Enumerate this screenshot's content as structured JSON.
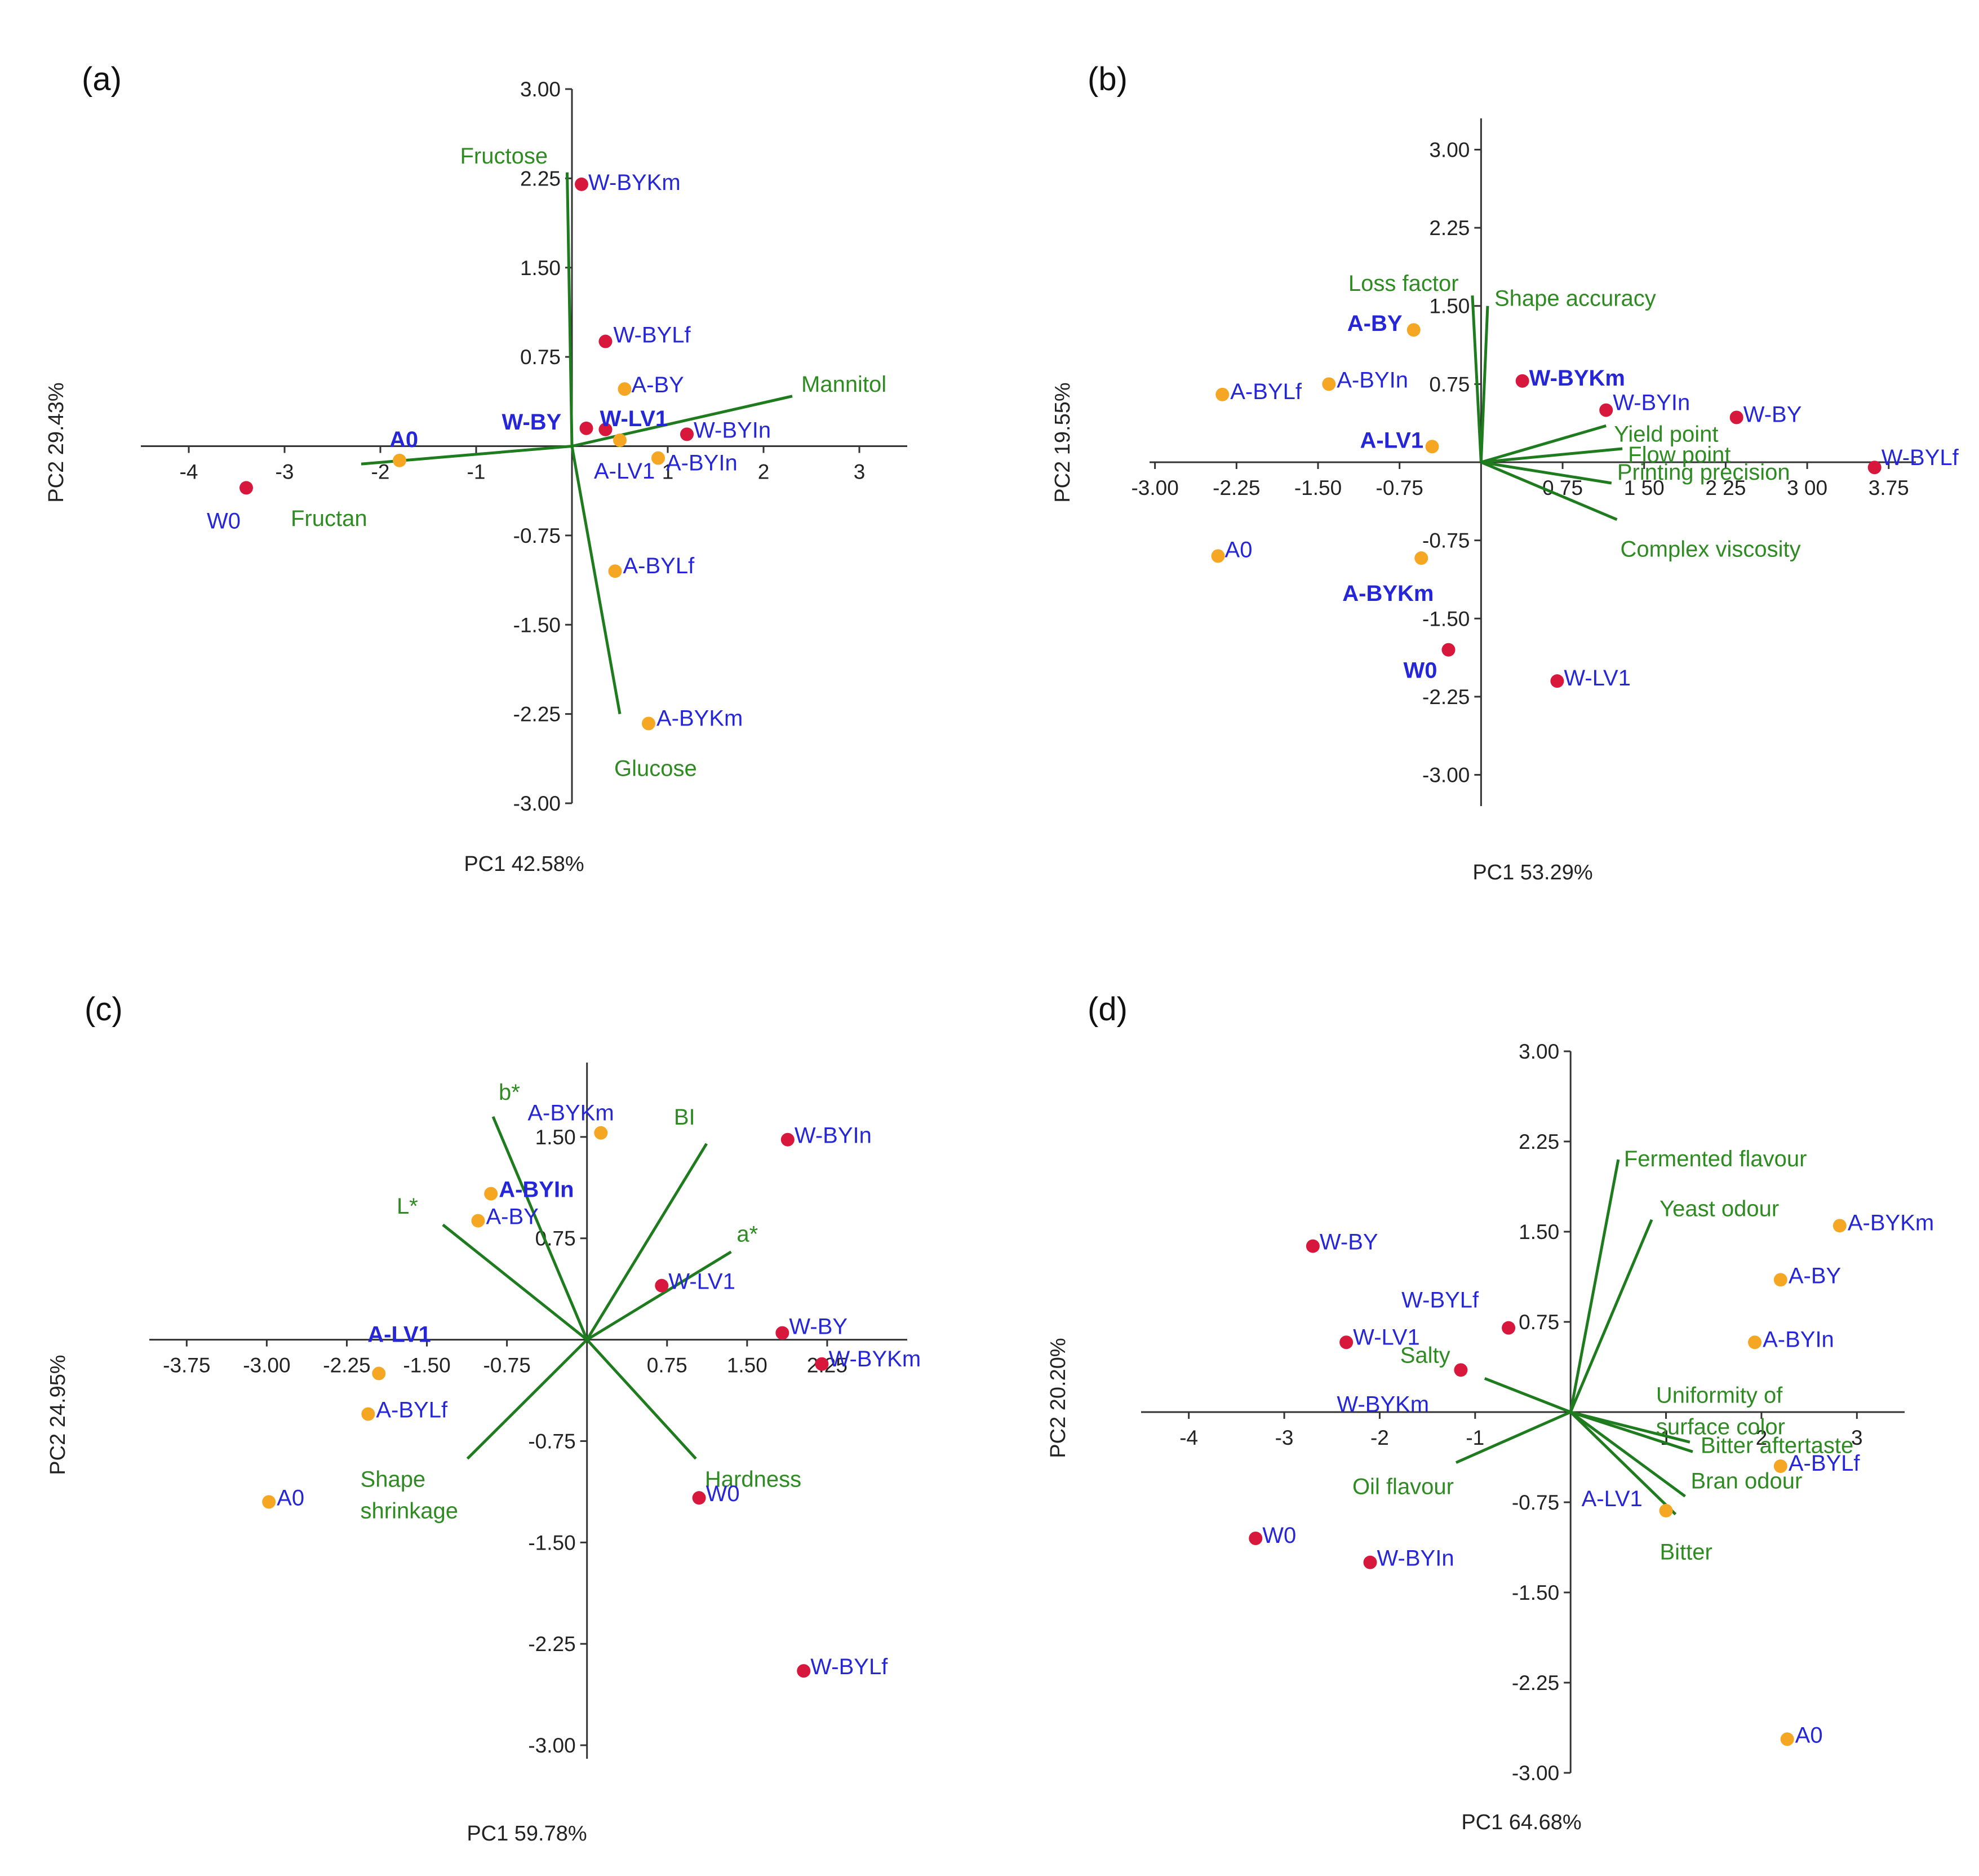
{
  "colors": {
    "axis": "#333333",
    "vector": "#1e7b1e",
    "vector_label": "#2e8b22",
    "sample_label": "#2626d9",
    "W_point": "#d7183c",
    "A_point": "#f5a623"
  },
  "chart_data": [
    {
      "type": "scatter",
      "panel": "(a)",
      "xlabel": "PC1 42.58%",
      "ylabel": "PC2 29.43%",
      "xlim": [
        -4.5,
        3.5
      ],
      "ylim": [
        -3.0,
        3.0
      ],
      "xticks": [
        "-4",
        "-3",
        "-2",
        "-1",
        "1",
        "2",
        "3"
      ],
      "yticks": [
        "3.00",
        "2.25",
        "1.50",
        "0.75",
        "-0.75",
        "-1.50",
        "-2.25",
        "-3.00"
      ],
      "grid": false,
      "points": [
        {
          "label": "W-BYKm",
          "group": "W",
          "x": 0.1,
          "y": 2.2
        },
        {
          "label": "W-BYLf",
          "group": "W",
          "x": 0.35,
          "y": 0.88
        },
        {
          "label": "W-BY",
          "group": "W",
          "x": 0.15,
          "y": 0.15
        },
        {
          "label": "W-LV1",
          "group": "W",
          "x": 0.35,
          "y": 0.14
        },
        {
          "label": "W-BYIn",
          "group": "W",
          "x": 1.2,
          "y": 0.1
        },
        {
          "label": "W0",
          "group": "W",
          "x": -3.4,
          "y": -0.35
        },
        {
          "label": "A-BY",
          "group": "A",
          "x": 0.55,
          "y": 0.48
        },
        {
          "label": "A-LV1",
          "group": "A",
          "x": 0.5,
          "y": 0.05
        },
        {
          "label": "A-BYIn",
          "group": "A",
          "x": 0.9,
          "y": -0.1
        },
        {
          "label": "A0",
          "group": "A",
          "x": -1.8,
          "y": -0.12
        },
        {
          "label": "A-BYLf",
          "group": "A",
          "x": 0.45,
          "y": -1.05
        },
        {
          "label": "A-BYKm",
          "group": "A",
          "x": 0.8,
          "y": -2.33
        }
      ],
      "vectors": [
        {
          "label": "Fructose",
          "x": -0.05,
          "y": 2.3
        },
        {
          "label": "Mannitol",
          "x": 2.3,
          "y": 0.42
        },
        {
          "label": "Fructan",
          "x": -2.2,
          "y": -0.15
        },
        {
          "label": "Glucose",
          "x": 0.5,
          "y": -2.25
        }
      ]
    },
    {
      "type": "scatter",
      "panel": "(b)",
      "xlabel": "PC1 53.29%",
      "ylabel": "PC2 19.55%",
      "xlim": [
        -3.05,
        4.0
      ],
      "ylim": [
        -3.3,
        3.3
      ],
      "xticks": [
        "-3.00",
        "-2.25",
        "-1.50",
        "-0.75",
        "0.75",
        "1 50",
        "2 25",
        "3 00",
        "3.75"
      ],
      "yticks": [
        "3.00",
        "2.25",
        "1.50",
        "0.75",
        "-0.75",
        "-1.50",
        "-2.25",
        "-3.00"
      ],
      "grid": false,
      "points": [
        {
          "label": "W-BYKm",
          "group": "W",
          "x": 0.38,
          "y": 0.78
        },
        {
          "label": "W-BYIn",
          "group": "W",
          "x": 1.15,
          "y": 0.5
        },
        {
          "label": "W-BY",
          "group": "W",
          "x": 2.35,
          "y": 0.43
        },
        {
          "label": "W-BYLf",
          "group": "W",
          "x": 3.62,
          "y": -0.05
        },
        {
          "label": "W0",
          "group": "W",
          "x": -0.3,
          "y": -1.8
        },
        {
          "label": "W-LV1",
          "group": "W",
          "x": 0.7,
          "y": -2.1
        },
        {
          "label": "A-BY",
          "group": "A",
          "x": -0.62,
          "y": 1.27
        },
        {
          "label": "A-BYLf",
          "group": "A",
          "x": -2.38,
          "y": 0.65
        },
        {
          "label": "A-BYIn",
          "group": "A",
          "x": -1.4,
          "y": 0.75
        },
        {
          "label": "A-LV1",
          "group": "A",
          "x": -0.45,
          "y": 0.15
        },
        {
          "label": "A0",
          "group": "A",
          "x": -2.42,
          "y": -0.9
        },
        {
          "label": "A-BYKm",
          "group": "A",
          "x": -0.55,
          "y": -0.92
        }
      ],
      "vectors": [
        {
          "label": "Loss factor",
          "x": -0.08,
          "y": 1.6
        },
        {
          "label": "Shape accuracy",
          "x": 0.06,
          "y": 1.5
        },
        {
          "label": "Yield point",
          "x": 1.15,
          "y": 0.35
        },
        {
          "label": "Flow point",
          "x": 1.3,
          "y": 0.13
        },
        {
          "label": "Printing precision",
          "x": 1.2,
          "y": -0.2
        },
        {
          "label": "Complex viscosity",
          "x": 1.25,
          "y": -0.55
        }
      ]
    },
    {
      "type": "scatter",
      "panel": "(c)",
      "xlabel": "PC1 59.78%",
      "ylabel": "PC2 24.95%",
      "xlim": [
        -4.1,
        3.0
      ],
      "ylim": [
        -3.1,
        2.05
      ],
      "xticks": [
        "-3.75",
        "-3.00",
        "-2.25",
        "-1.50",
        "-0.75",
        "0.75",
        "1.50",
        "2.25"
      ],
      "yticks": [
        "1.50",
        "0.75",
        "-0.75",
        "-1.50",
        "-2.25",
        "-3.00"
      ],
      "grid": false,
      "points": [
        {
          "label": "A-BYKm",
          "group": "A",
          "x": 0.13,
          "y": 1.53
        },
        {
          "label": "A-BYIn",
          "group": "A",
          "x": -0.9,
          "y": 1.08
        },
        {
          "label": "A-BY",
          "group": "A",
          "x": -1.02,
          "y": 0.88
        },
        {
          "label": "A-LV1",
          "group": "A",
          "x": -1.95,
          "y": -0.25
        },
        {
          "label": "A-BYLf",
          "group": "A",
          "x": -2.05,
          "y": -0.55
        },
        {
          "label": "A0",
          "group": "A",
          "x": -2.98,
          "y": -1.2
        },
        {
          "label": "W-BYIn",
          "group": "W",
          "x": 1.88,
          "y": 1.48
        },
        {
          "label": "W-LV1",
          "group": "W",
          "x": 0.7,
          "y": 0.4
        },
        {
          "label": "W-BY",
          "group": "W",
          "x": 1.83,
          "y": 0.05
        },
        {
          "label": "W-BYKm",
          "group": "W",
          "x": 2.2,
          "y": -0.18
        },
        {
          "label": "W0",
          "group": "W",
          "x": 1.05,
          "y": -1.17
        },
        {
          "label": "W-BYLf",
          "group": "W",
          "x": 2.03,
          "y": -2.45
        }
      ],
      "vectors": [
        {
          "label": "b*",
          "x": -0.88,
          "y": 1.65
        },
        {
          "label": "BI",
          "x": 1.12,
          "y": 1.45
        },
        {
          "label": "a*",
          "x": 1.35,
          "y": 0.65
        },
        {
          "label": "L*",
          "x": -1.35,
          "y": 0.85
        },
        {
          "label": "Hardness",
          "x": 1.02,
          "y": -0.88
        },
        {
          "label": "Shape shrinkage",
          "x": -1.12,
          "y": -0.88
        }
      ]
    },
    {
      "type": "scatter",
      "panel": "(d)",
      "xlabel": "PC1 64.68%",
      "ylabel": "PC2 20.20%",
      "xlim": [
        -4.5,
        3.5
      ],
      "ylim": [
        -3.0,
        3.0
      ],
      "xticks": [
        "-4",
        "-3",
        "-2",
        "-1",
        "1",
        "2",
        "3"
      ],
      "yticks": [
        "3.00",
        "2.25",
        "1.50",
        "0.75",
        "-0.75",
        "-1.50",
        "-2.25",
        "-3.00"
      ],
      "grid": false,
      "points": [
        {
          "label": "W-BY",
          "group": "W",
          "x": -2.7,
          "y": 1.38
        },
        {
          "label": "W-BYLf",
          "group": "W",
          "x": -0.65,
          "y": 0.7
        },
        {
          "label": "W-LV1",
          "group": "W",
          "x": -2.35,
          "y": 0.58
        },
        {
          "label": "W-BYKm",
          "group": "W",
          "x": -1.15,
          "y": 0.35
        },
        {
          "label": "W0",
          "group": "W",
          "x": -3.3,
          "y": -1.05
        },
        {
          "label": "W-BYIn",
          "group": "W",
          "x": -2.1,
          "y": -1.25
        },
        {
          "label": "A-BYKm",
          "group": "A",
          "x": 2.82,
          "y": 1.55
        },
        {
          "label": "A-BY",
          "group": "A",
          "x": 2.2,
          "y": 1.1
        },
        {
          "label": "A-BYIn",
          "group": "A",
          "x": 1.93,
          "y": 0.58
        },
        {
          "label": "A-BYLf",
          "group": "A",
          "x": 2.2,
          "y": -0.45
        },
        {
          "label": "A-LV1",
          "group": "A",
          "x": 1.0,
          "y": -0.82
        },
        {
          "label": "A0",
          "group": "A",
          "x": 2.27,
          "y": -2.72
        }
      ],
      "vectors": [
        {
          "label": "Fermented flavour",
          "x": 0.5,
          "y": 2.1
        },
        {
          "label": "Yeast odour",
          "x": 0.85,
          "y": 1.6
        },
        {
          "label": "Uniformity of surface color",
          "x": 1.25,
          "y": -0.25
        },
        {
          "label": "Bitter aftertaste",
          "x": 1.28,
          "y": -0.33
        },
        {
          "label": "Bran odour",
          "x": 1.2,
          "y": -0.7
        },
        {
          "label": "Bitter",
          "x": 1.1,
          "y": -0.85
        },
        {
          "label": "Salty",
          "x": -0.9,
          "y": 0.28
        },
        {
          "label": "Oil flavour",
          "x": -1.2,
          "y": -0.42
        }
      ]
    }
  ]
}
